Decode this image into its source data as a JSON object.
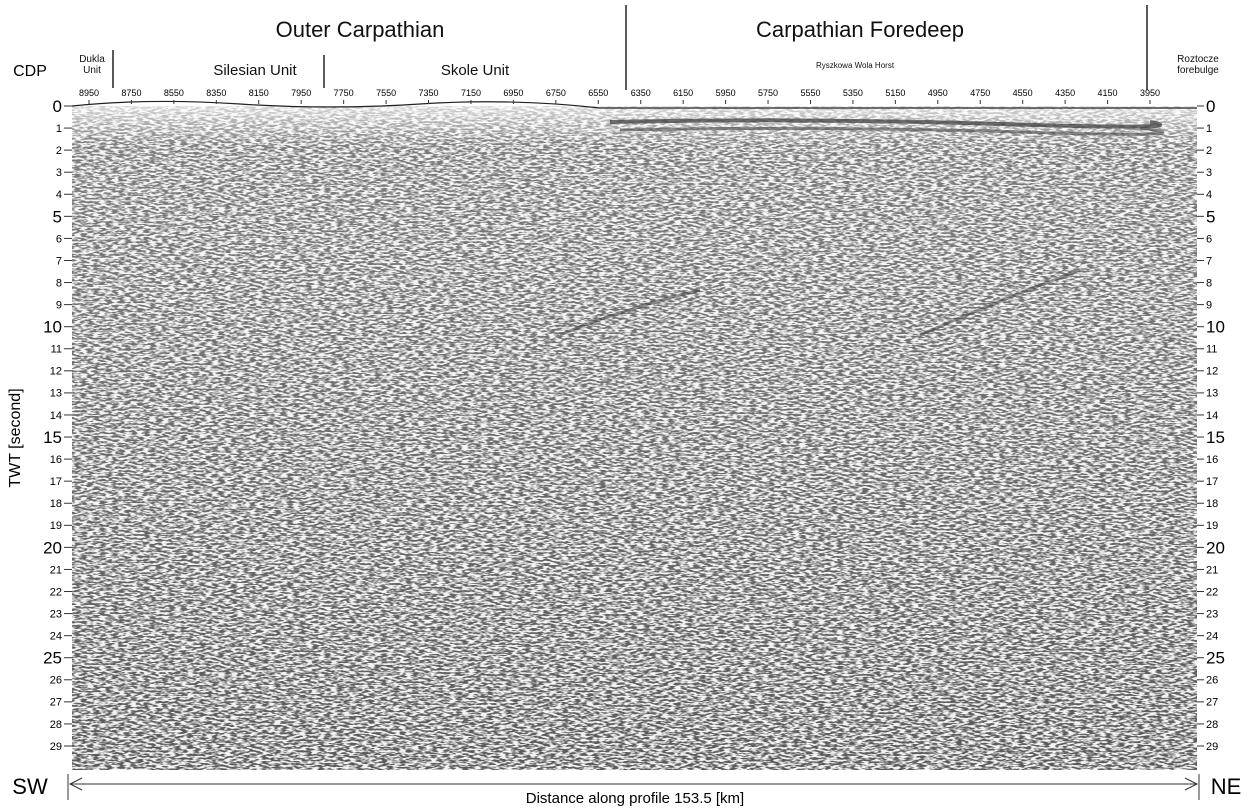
{
  "header": {
    "regions": [
      "Outer Carpathian",
      "Carpathian Foredeep"
    ],
    "units": [
      "Dukla Unit",
      "Silesian Unit",
      "Skole Unit",
      "Ryszkowa Wola Horst",
      "Roztocze forebulge"
    ]
  },
  "cdp_label": "CDP",
  "cdp_ticks": [
    8950,
    8750,
    8550,
    8350,
    8150,
    7950,
    7750,
    7550,
    7350,
    7150,
    6950,
    6750,
    6550,
    6350,
    6150,
    5950,
    5750,
    5550,
    5350,
    5150,
    4950,
    4750,
    4550,
    4350,
    4150,
    3950
  ],
  "y_axis_label": "TWT [second]",
  "twt_ticks": [
    0,
    1,
    2,
    3,
    4,
    5,
    6,
    7,
    8,
    9,
    10,
    11,
    12,
    13,
    14,
    15,
    16,
    17,
    18,
    19,
    20,
    21,
    22,
    23,
    24,
    25,
    26,
    27,
    28,
    29
  ],
  "footer": {
    "left": "SW",
    "right": "NE",
    "distance_label": "Distance along profile 153.5 [km]"
  }
}
